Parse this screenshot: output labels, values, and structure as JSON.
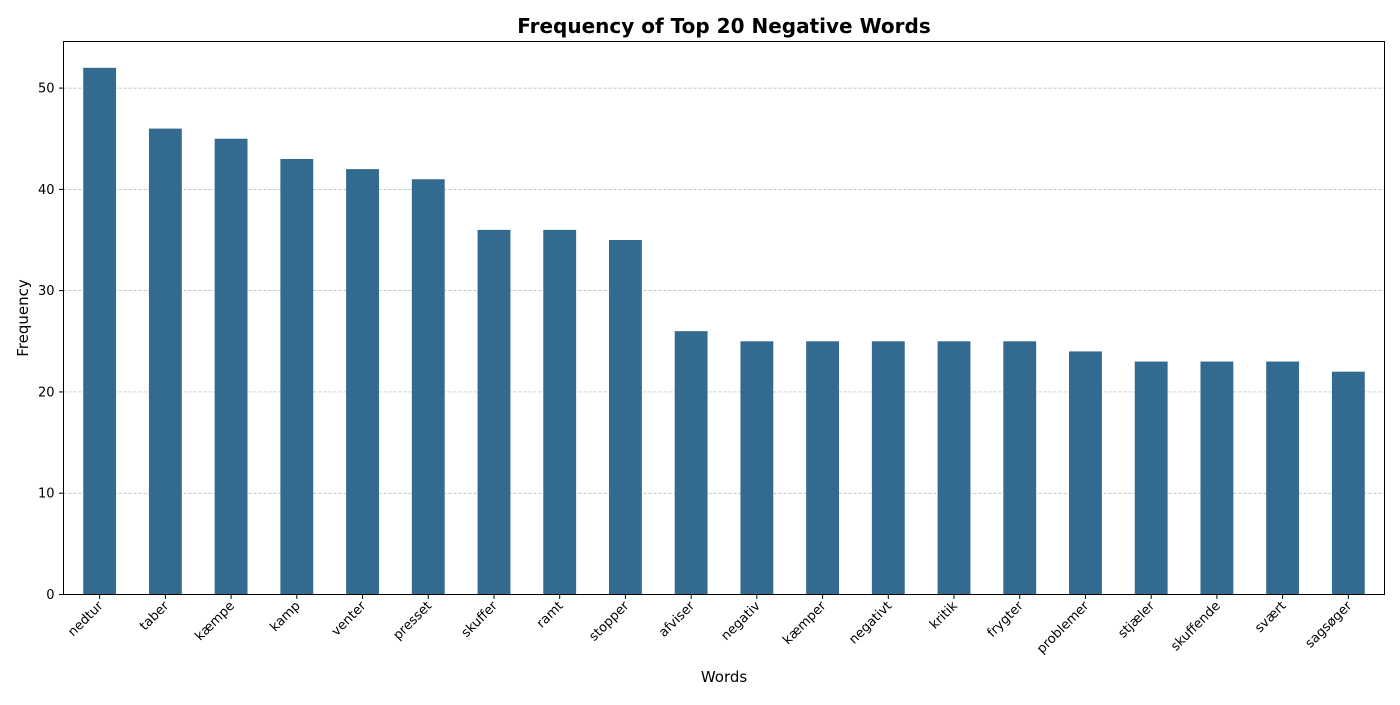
{
  "chart_data": {
    "type": "bar",
    "title": "Frequency of Top 20 Negative Words",
    "xlabel": "Words",
    "ylabel": "Frequency",
    "categories": [
      "nedtur",
      "taber",
      "kæmpe",
      "kamp",
      "venter",
      "presset",
      "skuffer",
      "ramt",
      "stopper",
      "afviser",
      "negativ",
      "kæmper",
      "negativt",
      "kritik",
      "frygter",
      "problemer",
      "stjæler",
      "skuffende",
      "svært",
      "sagsøger"
    ],
    "values": [
      52,
      46,
      45,
      43,
      42,
      41,
      36,
      36,
      35,
      26,
      25,
      25,
      25,
      25,
      25,
      24,
      23,
      23,
      23,
      22
    ],
    "ylim": [
      0,
      54.6
    ],
    "yticks": [
      0,
      10,
      20,
      30,
      40,
      50
    ],
    "grid": "y",
    "legend": "none",
    "bar_color": "#336a90",
    "grid_color": "#b0b0b0"
  }
}
